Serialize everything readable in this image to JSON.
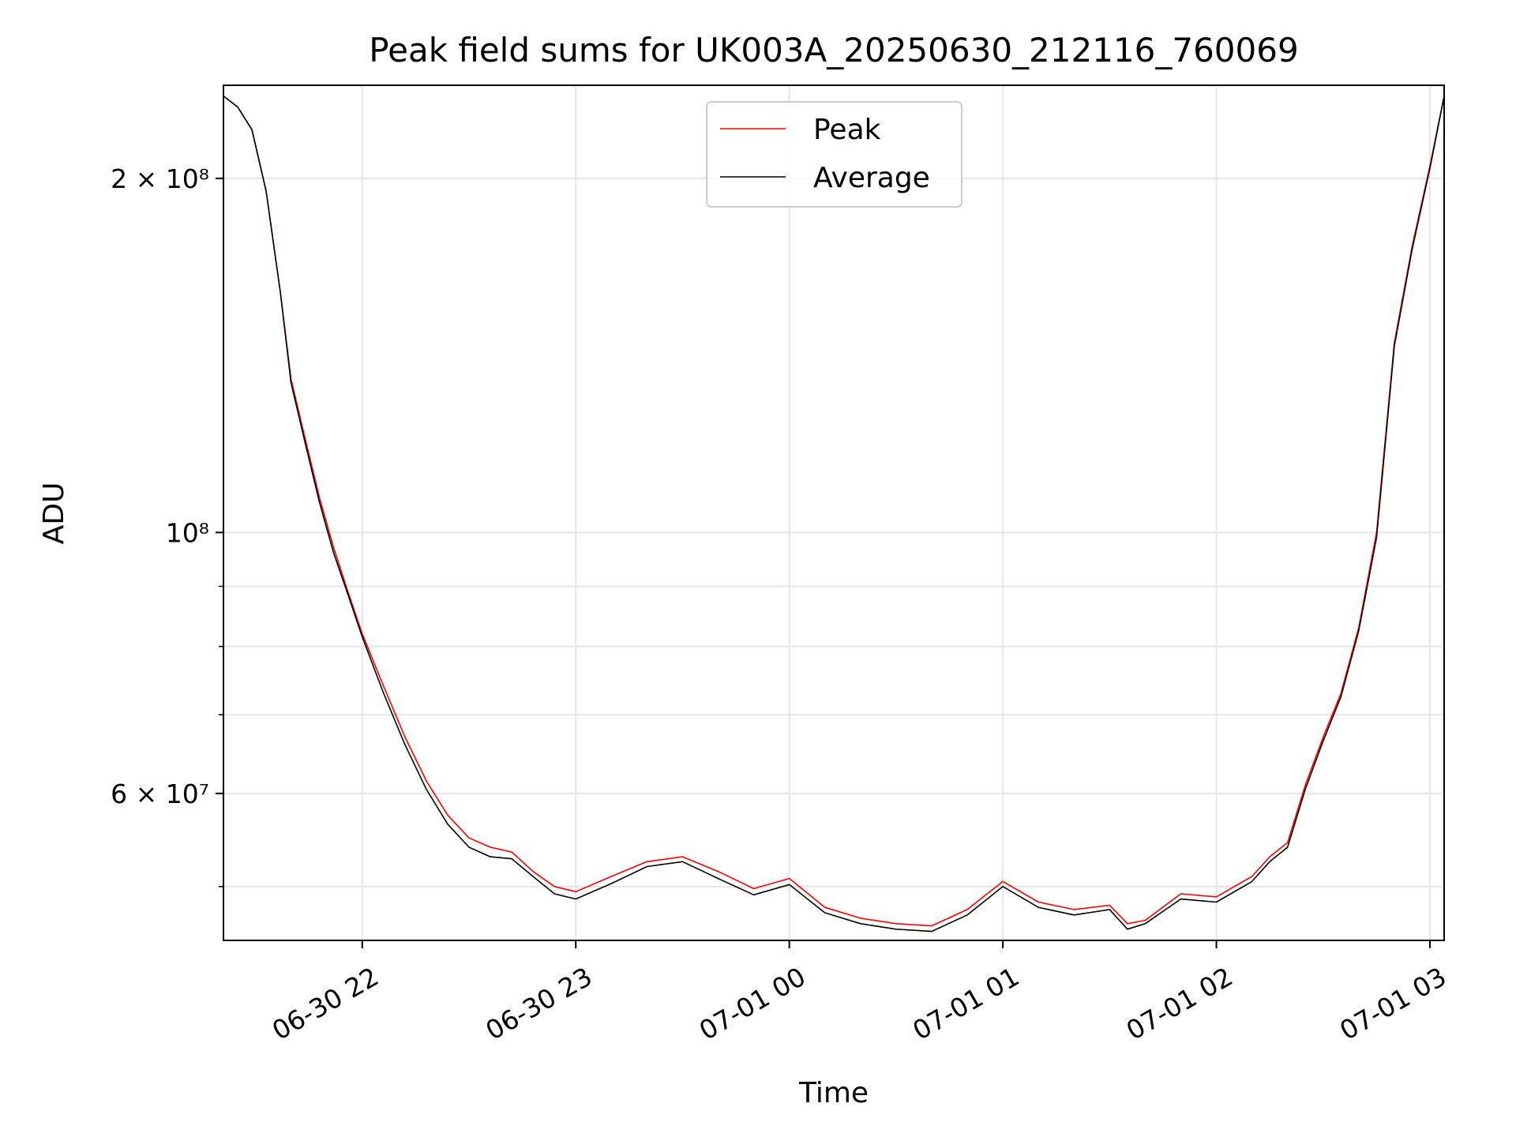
{
  "chart_data": {
    "type": "line",
    "title": "Peak field sums for UK003A_20250630_212116_760069",
    "xlabel": "Time",
    "ylabel": "ADU",
    "y_scale": "log",
    "ylim": [
      45000000,
      240000000
    ],
    "xlim": [
      "2025-06-30T21:21",
      "2025-07-01T03:04"
    ],
    "x_ticks": [
      {
        "time": "2025-06-30T22:00",
        "label": "06-30 22"
      },
      {
        "time": "2025-06-30T23:00",
        "label": "06-30 23"
      },
      {
        "time": "2025-07-01T00:00",
        "label": "07-01 00"
      },
      {
        "time": "2025-07-01T01:00",
        "label": "07-01 01"
      },
      {
        "time": "2025-07-01T02:00",
        "label": "07-01 02"
      },
      {
        "time": "2025-07-01T03:00",
        "label": "07-01 03"
      }
    ],
    "y_ticks_major": [
      {
        "value": 200000000,
        "label": "2 × 10⁸"
      },
      {
        "value": 100000000,
        "label": "10⁸"
      },
      {
        "value": 60000000,
        "label": "6 × 10⁷"
      }
    ],
    "y_ticks_minor": [
      50000000,
      70000000,
      80000000,
      90000000
    ],
    "grid": true,
    "legend_position": "top-center",
    "series": [
      {
        "name": "Peak",
        "color": "#ff0000",
        "x": [
          "2025-06-30T21:21",
          "2025-06-30T21:25",
          "2025-06-30T21:29",
          "2025-06-30T21:33",
          "2025-06-30T21:37",
          "2025-06-30T21:40",
          "2025-06-30T21:44",
          "2025-06-30T21:48",
          "2025-06-30T21:52",
          "2025-06-30T21:56",
          "2025-06-30T22:00",
          "2025-06-30T22:06",
          "2025-06-30T22:12",
          "2025-06-30T22:18",
          "2025-06-30T22:24",
          "2025-06-30T22:30",
          "2025-06-30T22:36",
          "2025-06-30T22:42",
          "2025-06-30T22:48",
          "2025-06-30T22:54",
          "2025-06-30T23:00",
          "2025-06-30T23:10",
          "2025-06-30T23:20",
          "2025-06-30T23:30",
          "2025-06-30T23:40",
          "2025-06-30T23:50",
          "2025-07-01T00:00",
          "2025-07-01T00:10",
          "2025-07-01T00:20",
          "2025-07-01T00:30",
          "2025-07-01T00:40",
          "2025-07-01T00:50",
          "2025-07-01T01:00",
          "2025-07-01T01:10",
          "2025-07-01T01:20",
          "2025-07-01T01:30",
          "2025-07-01T01:35",
          "2025-07-01T01:40",
          "2025-07-01T01:50",
          "2025-07-01T02:00",
          "2025-07-01T02:10",
          "2025-07-01T02:15",
          "2025-07-01T02:20",
          "2025-07-01T02:25",
          "2025-07-01T02:30",
          "2025-07-01T02:35",
          "2025-07-01T02:40",
          "2025-07-01T02:45",
          "2025-07-01T02:50",
          "2025-07-01T02:55",
          "2025-07-01T03:00",
          "2025-07-01T03:04"
        ],
        "y": [
          235000000,
          230000000,
          220000000,
          195000000,
          160000000,
          135000000,
          120000000,
          107000000,
          97000000,
          89000000,
          82000000,
          74000000,
          67000000,
          61500000,
          57500000,
          55000000,
          54000000,
          53500000,
          51500000,
          50000000,
          49500000,
          51000000,
          52500000,
          53000000,
          51500000,
          49800000,
          50800000,
          48000000,
          47000000,
          46500000,
          46300000,
          47800000,
          50500000,
          48500000,
          47800000,
          48200000,
          46500000,
          46800000,
          49300000,
          49000000,
          51000000,
          53000000,
          54500000,
          61000000,
          67000000,
          73000000,
          83000000,
          100000000,
          145000000,
          175000000,
          205000000,
          235000000
        ]
      },
      {
        "name": "Average",
        "color": "#000000",
        "x": [
          "2025-06-30T21:21",
          "2025-06-30T21:25",
          "2025-06-30T21:29",
          "2025-06-30T21:33",
          "2025-06-30T21:37",
          "2025-06-30T21:40",
          "2025-06-30T21:44",
          "2025-06-30T21:48",
          "2025-06-30T21:52",
          "2025-06-30T21:56",
          "2025-06-30T22:00",
          "2025-06-30T22:06",
          "2025-06-30T22:12",
          "2025-06-30T22:18",
          "2025-06-30T22:24",
          "2025-06-30T22:30",
          "2025-06-30T22:36",
          "2025-06-30T22:42",
          "2025-06-30T22:48",
          "2025-06-30T22:54",
          "2025-06-30T23:00",
          "2025-06-30T23:10",
          "2025-06-30T23:20",
          "2025-06-30T23:30",
          "2025-06-30T23:40",
          "2025-06-30T23:50",
          "2025-07-01T00:00",
          "2025-07-01T00:10",
          "2025-07-01T00:20",
          "2025-07-01T00:30",
          "2025-07-01T00:40",
          "2025-07-01T00:50",
          "2025-07-01T01:00",
          "2025-07-01T01:10",
          "2025-07-01T01:20",
          "2025-07-01T01:30",
          "2025-07-01T01:35",
          "2025-07-01T01:40",
          "2025-07-01T01:50",
          "2025-07-01T02:00",
          "2025-07-01T02:10",
          "2025-07-01T02:15",
          "2025-07-01T02:20",
          "2025-07-01T02:25",
          "2025-07-01T02:30",
          "2025-07-01T02:35",
          "2025-07-01T02:40",
          "2025-07-01T02:45",
          "2025-07-01T02:50",
          "2025-07-01T02:55",
          "2025-07-01T03:00",
          "2025-07-01T03:04"
        ],
        "y": [
          235000000,
          230000000,
          220000000,
          195000000,
          160000000,
          134000000,
          119000000,
          106000000,
          96000000,
          88500000,
          81500000,
          73000000,
          66000000,
          60500000,
          56500000,
          54000000,
          53000000,
          52800000,
          51000000,
          49300000,
          48800000,
          50300000,
          52000000,
          52500000,
          50800000,
          49200000,
          50200000,
          47500000,
          46500000,
          46000000,
          45800000,
          47300000,
          50000000,
          48000000,
          47300000,
          47800000,
          46000000,
          46500000,
          48800000,
          48500000,
          50500000,
          52500000,
          54000000,
          60500000,
          66500000,
          72500000,
          82500000,
          99000000,
          144000000,
          174000000,
          204000000,
          235000000
        ]
      }
    ]
  }
}
